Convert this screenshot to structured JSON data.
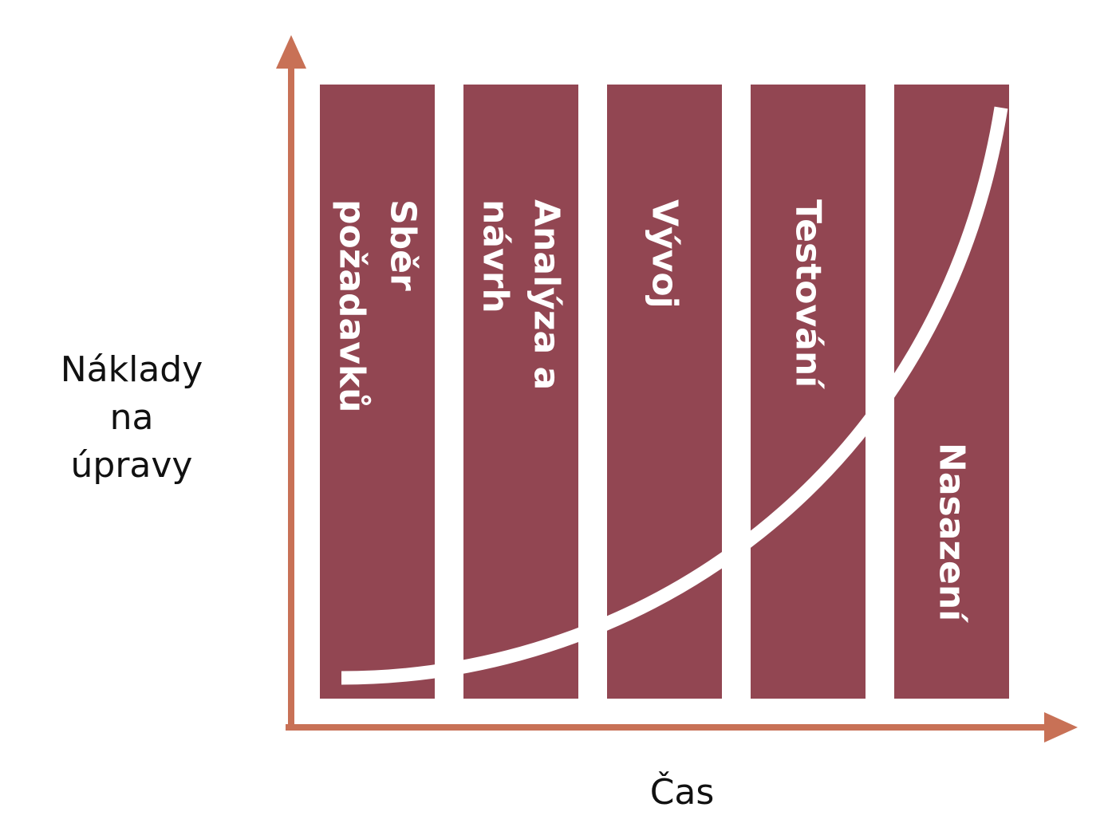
{
  "y_axis_label": [
    "Náklady",
    "na",
    "úpravy"
  ],
  "x_axis_label": "Čas",
  "phases": [
    {
      "lines": [
        "Sběr",
        "požadavků"
      ]
    },
    {
      "lines": [
        "Analýza a",
        "návrh"
      ]
    },
    {
      "lines": [
        "Vývoj"
      ]
    },
    {
      "lines": [
        "Testování"
      ]
    },
    {
      "lines": [
        "Nasazení"
      ]
    }
  ]
}
